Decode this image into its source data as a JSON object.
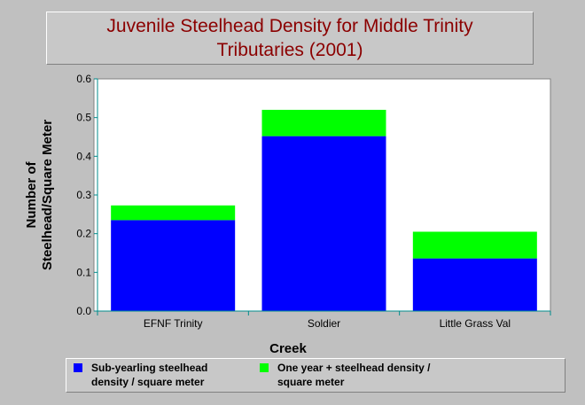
{
  "chart_data": {
    "type": "bar",
    "stacked": true,
    "title": "Juvenile Steelhead Density for Middle Trinity Tributaries (2001)",
    "title_lines": [
      "Juvenile Steelhead Density for Middle Trinity",
      "Tributaries (2001)"
    ],
    "xlabel": "Creek",
    "ylabel": "Number of Steelhead/Square Meter",
    "ylabel_lines": [
      "Number of",
      "Steelhead/Square Meter"
    ],
    "categories": [
      "EFNF Trinity",
      "Soldier",
      "Little Grass Val"
    ],
    "ylim": [
      0,
      0.6
    ],
    "yticks": [
      "0.0",
      "0.1",
      "0.2",
      "0.3",
      "0.4",
      "0.5",
      "0.6"
    ],
    "grid": false,
    "legend_position": "bottom",
    "series": [
      {
        "name": "Sub-yearling steelhead density / square meter",
        "label_lines": [
          "Sub-yearling steelhead",
          "density / square meter"
        ],
        "color": "#0000ff",
        "values": [
          0.235,
          0.452,
          0.136
        ]
      },
      {
        "name": "One year + steelhead density / square meter",
        "label_lines": [
          "One year + steelhead density /",
          "square meter"
        ],
        "color": "#00ff00",
        "values": [
          0.038,
          0.068,
          0.069
        ]
      }
    ]
  }
}
